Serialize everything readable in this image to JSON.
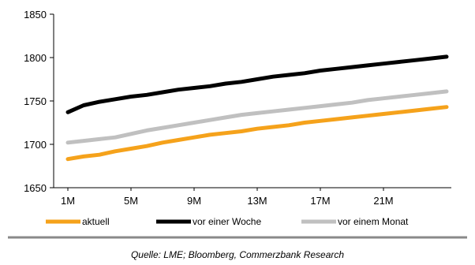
{
  "chart_data": {
    "type": "line",
    "title": "",
    "xlabel": "",
    "ylabel": "",
    "ylim": [
      1650,
      1850
    ],
    "yticks": [
      1650,
      1700,
      1750,
      1800,
      1850
    ],
    "x_tick_labels": [
      "1M",
      "5M",
      "9M",
      "13M",
      "17M",
      "21M"
    ],
    "x_tick_positions": [
      1,
      5,
      9,
      13,
      17,
      21
    ],
    "xlim": [
      1,
      25
    ],
    "grid": false,
    "legend": "bottom",
    "x": [
      1,
      2,
      3,
      4,
      5,
      6,
      7,
      8,
      9,
      10,
      11,
      12,
      13,
      14,
      15,
      16,
      17,
      18,
      19,
      20,
      21,
      22,
      23,
      24,
      25
    ],
    "series": [
      {
        "name": "aktuell",
        "color": "#F5A21B",
        "values": [
          1683,
          1686,
          1688,
          1692,
          1695,
          1698,
          1702,
          1705,
          1708,
          1711,
          1713,
          1715,
          1718,
          1720,
          1722,
          1725,
          1727,
          1729,
          1731,
          1733,
          1735,
          1737,
          1739,
          1741,
          1743
        ]
      },
      {
        "name": "vor einer Woche",
        "color": "#000000",
        "values": [
          1737,
          1745,
          1749,
          1752,
          1755,
          1757,
          1760,
          1763,
          1765,
          1767,
          1770,
          1772,
          1775,
          1778,
          1780,
          1782,
          1785,
          1787,
          1789,
          1791,
          1793,
          1795,
          1797,
          1799,
          1801
        ]
      },
      {
        "name": "vor einem Monat",
        "color": "#C0C0C0",
        "values": [
          1702,
          1704,
          1706,
          1708,
          1712,
          1716,
          1719,
          1722,
          1725,
          1728,
          1731,
          1734,
          1736,
          1738,
          1740,
          1742,
          1744,
          1746,
          1748,
          1751,
          1753,
          1755,
          1757,
          1759,
          1761
        ]
      }
    ]
  },
  "footer": {
    "source": "Quelle: LME; Bloomberg, Commerzbank Research"
  }
}
